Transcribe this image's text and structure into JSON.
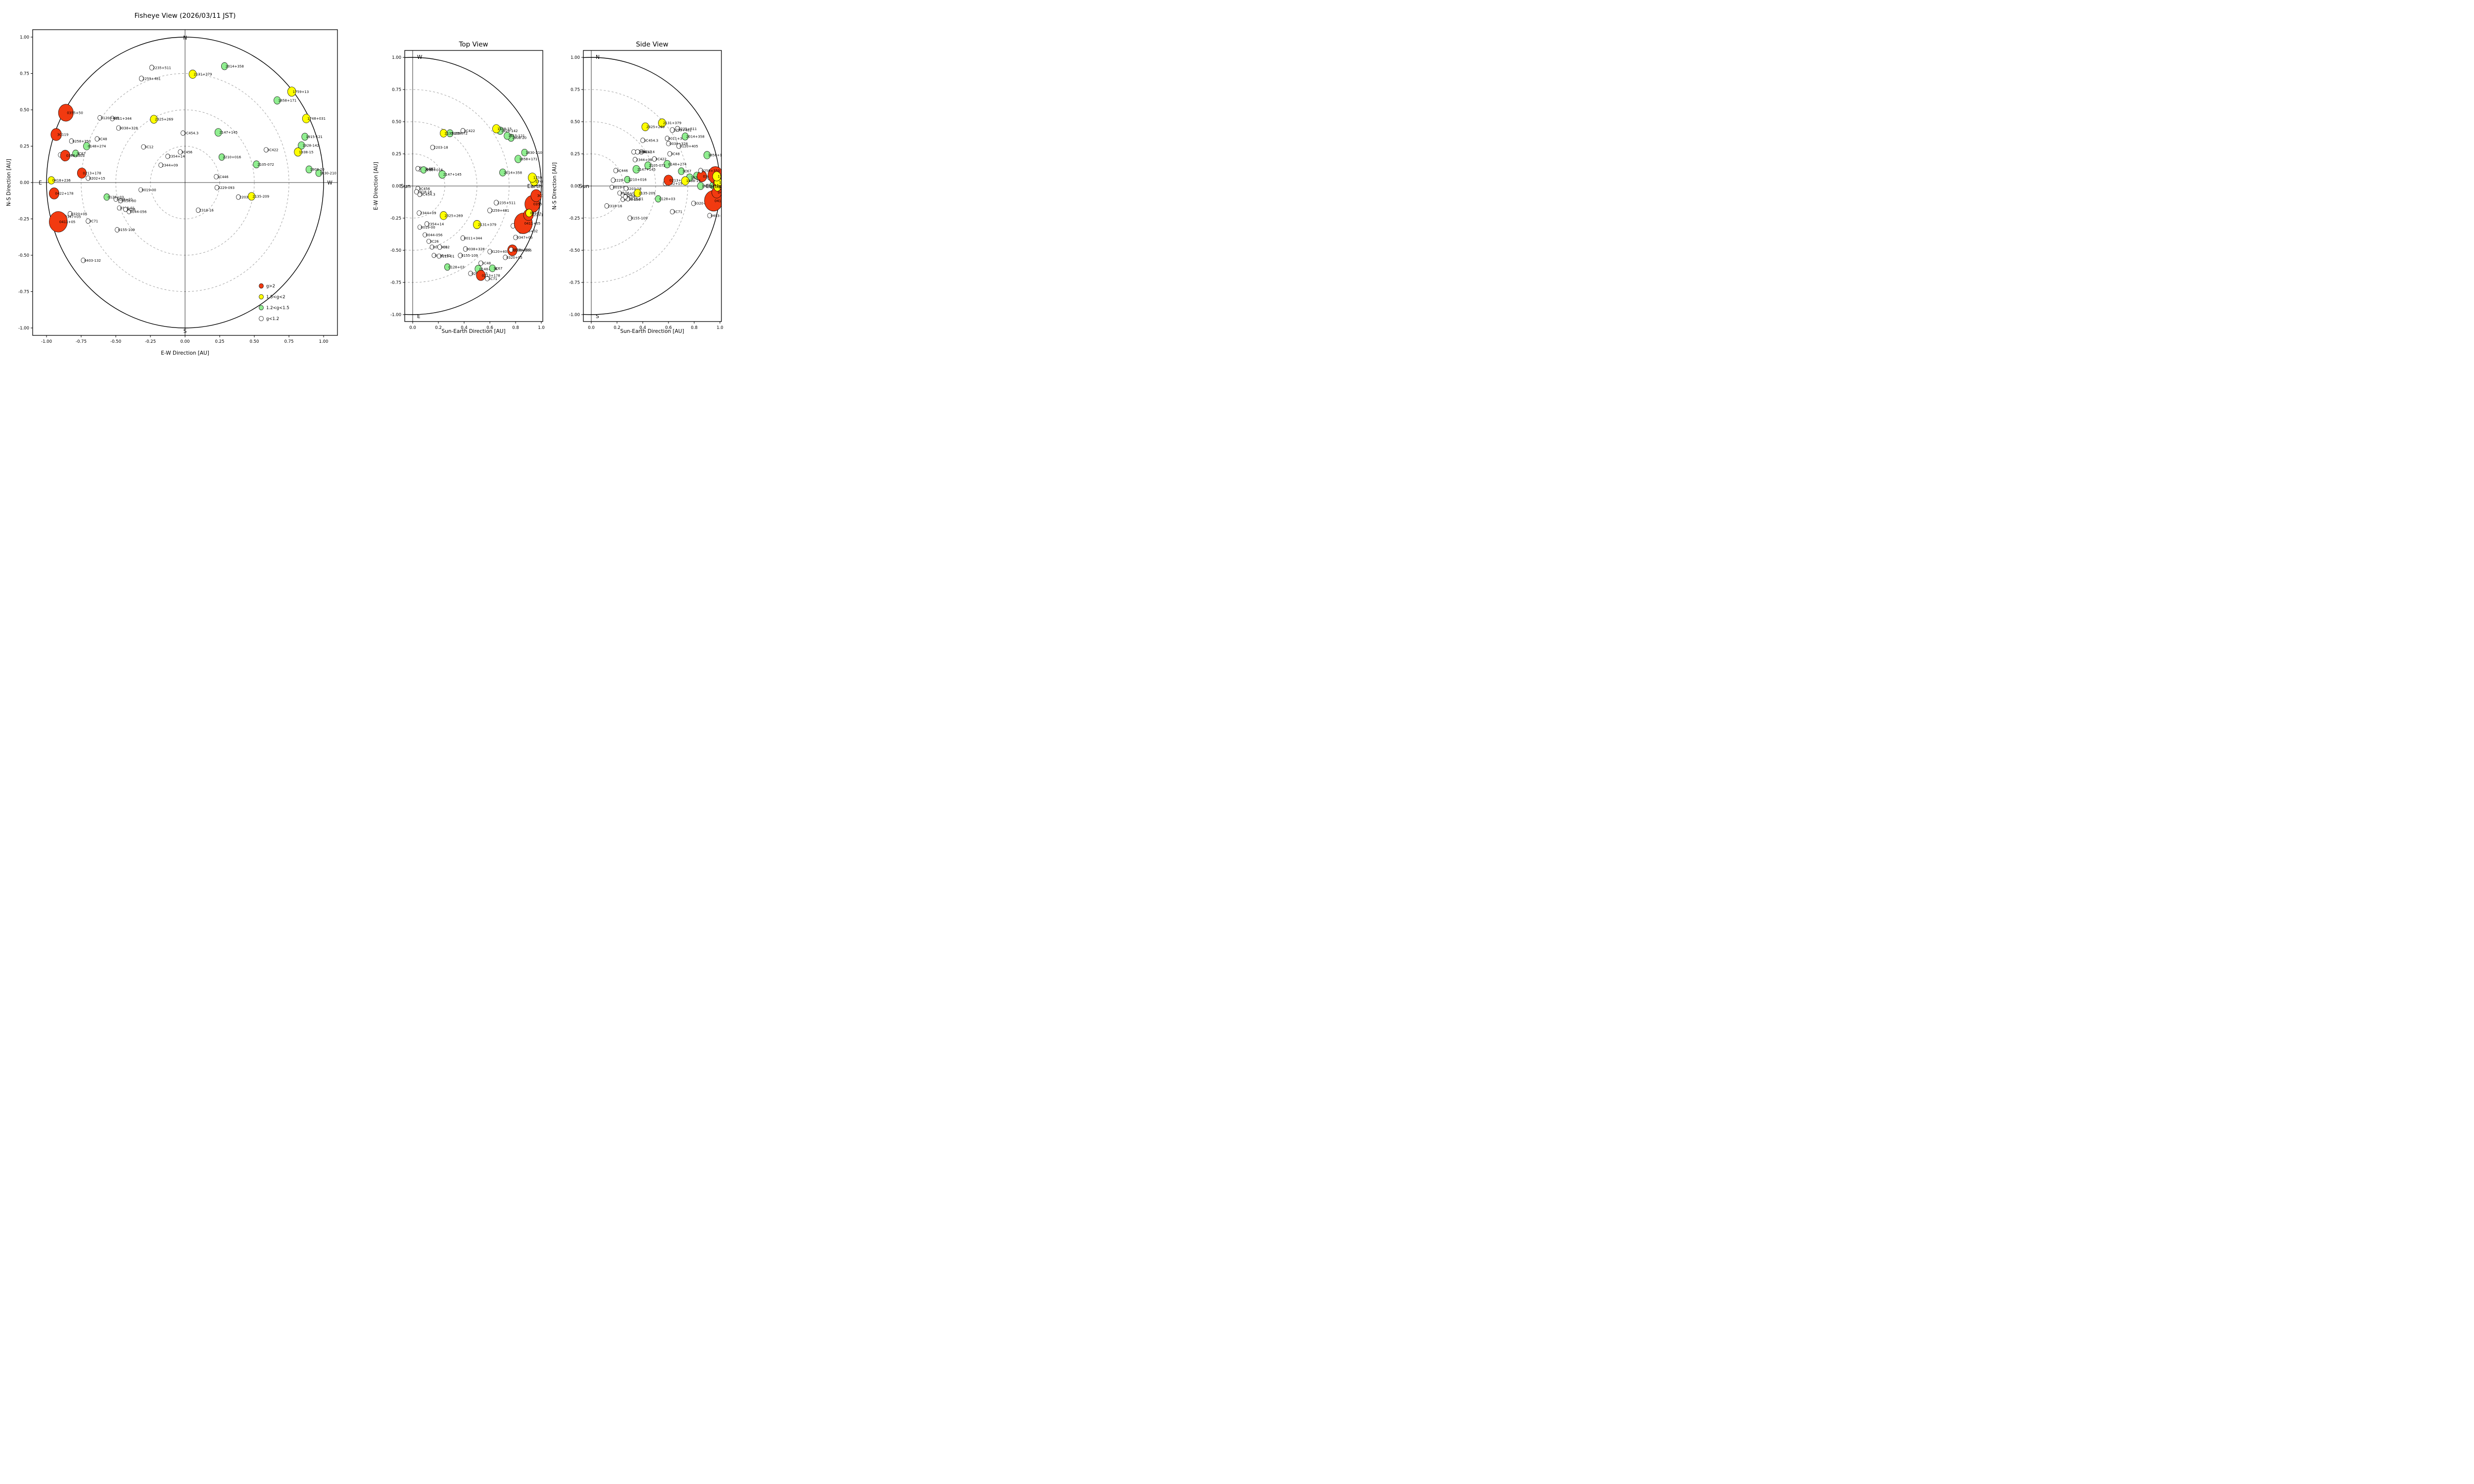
{
  "page": {
    "background": "#ffffff"
  },
  "style": {
    "grid_color": "#999999",
    "axis_color": "#000000",
    "marker_edge": "#000000"
  },
  "legend": {
    "items": [
      {
        "class": "red",
        "label": "g>2"
      },
      {
        "class": "yellow",
        "label": "1.5<g<2"
      },
      {
        "class": "green",
        "label": "1.2<g<1.5"
      },
      {
        "class": "white",
        "label": "g<1.2"
      }
    ]
  },
  "panels": {
    "fisheye": {
      "title": "Fisheye View (2026/03/11 JST)",
      "xlabel": "E-W Direction [AU]",
      "ylabel": "N-S Direction [AU]",
      "xticks": [
        "-1.00",
        "-0.75",
        "-0.50",
        "-0.25",
        "0.00",
        "0.25",
        "0.50",
        "0.75",
        "1.00"
      ],
      "yticks": [
        "-1.00",
        "-0.75",
        "-0.50",
        "-0.25",
        "0.00",
        "0.25",
        "0.50",
        "0.75",
        "1.00"
      ],
      "compass": {
        "top": "N",
        "bottom": "S",
        "left": "E",
        "right": "W"
      },
      "circles": {
        "solid": 1.0,
        "dashed": [
          0.25,
          0.5,
          0.75
        ]
      },
      "xlim": [
        -1.1,
        1.1
      ],
      "ylim": [
        -1.06,
        1.06
      ],
      "legend": true
    },
    "top": {
      "title": "Top View",
      "xlabel": "Sun-Earth Direction [AU]",
      "ylabel": "E-W Direction [AU]",
      "xticks": [
        "0.0",
        "0.2",
        "0.4",
        "0.6",
        "0.8",
        "1.0"
      ],
      "yticks": [
        "1.00",
        "0.75",
        "0.50",
        "0.25",
        "0.00",
        "-0.25",
        "-0.50",
        "-0.75",
        "-1.00"
      ],
      "compass": {
        "top": "W",
        "bottom": "E"
      },
      "sun_label": "Sun",
      "earth_label": "Earth",
      "circles": {
        "solid": 1.0,
        "dashed": [
          0.25,
          0.5,
          0.75
        ]
      },
      "xlim": [
        -0.06,
        1.07
      ],
      "ylim": [
        -1.05,
        1.05
      ]
    },
    "side": {
      "title": "Side View",
      "xlabel": "Sun-Earth Direction [AU]",
      "ylabel": "N-S Direction [AU]",
      "xticks": [
        "0.0",
        "0.2",
        "0.4",
        "0.6",
        "0.8",
        "1.0"
      ],
      "yticks": [
        "1.00",
        "0.75",
        "0.50",
        "0.25",
        "0.00",
        "-0.25",
        "-0.50",
        "-0.75",
        "-1.00"
      ],
      "compass": {
        "top": "N",
        "bottom": "S"
      },
      "sun_label": "Sun",
      "earth_label": "Earth",
      "circles": {
        "solid": 1.0,
        "dashed": [
          0.25,
          0.5,
          0.75
        ]
      },
      "xlim": [
        -0.06,
        1.07
      ],
      "ylim": [
        -1.05,
        1.05
      ]
    }
  },
  "chart_data": {
    "type": "scatter",
    "title": "Fisheye View (2026/03/11 JST) / Top View / Side View",
    "axes_units": "AU",
    "class_colors": {
      "red": "#f23a10",
      "yellow": "#ffff00",
      "green": "#90ee90",
      "white": "#ffffff"
    },
    "class_meaning": {
      "red": "g>2",
      "yellow": "1.5<g<2",
      "green": "1.2<g<1.5",
      "white": "g<1.2"
    },
    "sources": [
      {
        "name": "0011+344",
        "class": "white",
        "size": 0.016,
        "fisheye": [
          -0.525,
          0.44
        ],
        "top": [
          0.39,
          -0.405
        ],
        "side": [
          0.59,
          0.37
        ]
      },
      {
        "name": "0019-00",
        "class": "white",
        "size": 0.015,
        "fisheye": [
          -0.32,
          -0.05
        ],
        "top": [
          0.055,
          -0.32
        ],
        "side": [
          0.16,
          -0.01
        ]
      },
      {
        "name": "0038+328",
        "class": "white",
        "size": 0.016,
        "fisheye": [
          -0.48,
          0.375
        ],
        "top": [
          0.41,
          -0.49
        ],
        "side": [
          0.6,
          0.33
        ]
      },
      {
        "name": "0044-056",
        "class": "white",
        "size": 0.015,
        "fisheye": [
          -0.405,
          -0.2
        ],
        "top": [
          0.095,
          -0.38
        ],
        "side": [
          0.245,
          -0.105
        ]
      },
      {
        "name": "0056-00",
        "class": "white",
        "size": 0.015,
        "fisheye": [
          -0.465,
          -0.125
        ],
        "top": [
          0.15,
          -0.475
        ],
        "side": [
          0.245,
          -0.07
        ]
      },
      {
        "name": "0106+01",
        "class": "white",
        "size": 0.015,
        "fisheye": [
          -0.5,
          -0.115
        ],
        "top": [
          0.165,
          -0.54
        ],
        "side": [
          0.22,
          -0.055
        ]
      },
      {
        "name": "0115-01",
        "class": "white",
        "size": 0.015,
        "fisheye": [
          -0.475,
          -0.175
        ],
        "top": [
          0.205,
          -0.545
        ],
        "side": [
          0.285,
          -0.1
        ]
      },
      {
        "name": "0120+405",
        "class": "white",
        "size": 0.016,
        "fisheye": [
          -0.615,
          0.445
        ],
        "top": [
          0.6,
          -0.51
        ],
        "side": [
          0.68,
          0.31
        ]
      },
      {
        "name": "0155-109",
        "class": "white",
        "size": 0.016,
        "fisheye": [
          -0.49,
          -0.325
        ],
        "top": [
          0.37,
          -0.54
        ],
        "side": [
          0.3,
          -0.25
        ]
      },
      {
        "name": "0202+15",
        "class": "white",
        "size": 0.016,
        "fisheye": [
          -0.7,
          0.03
        ],
        "top": [
          0.45,
          -0.68
        ],
        "side": [
          0.575,
          0.02
        ]
      },
      {
        "name": "0320+05",
        "class": "white",
        "size": 0.016,
        "fisheye": [
          -0.83,
          -0.215
        ],
        "top": [
          0.72,
          -0.555
        ],
        "side": [
          0.795,
          -0.135
        ]
      },
      {
        "name": "0333+32",
        "class": "white",
        "size": 0.016,
        "fisheye": [
          -0.9,
          0.19
        ],
        "top": [
          0.84,
          -0.35
        ],
        "side": [
          0.92,
          0.065
        ]
      },
      {
        "name": "0347+05",
        "class": "white",
        "size": 0.016,
        "fisheye": [
          -0.875,
          -0.235
        ],
        "top": [
          0.8,
          -0.4
        ],
        "side": [
          0.9,
          -0.13
        ]
      },
      {
        "name": "0403-132",
        "class": "white",
        "size": 0.016,
        "fisheye": [
          -0.735,
          -0.535
        ],
        "top": [
          0.78,
          -0.31
        ],
        "side": [
          0.92,
          -0.23
        ]
      },
      {
        "name": "3C12",
        "class": "white",
        "size": 0.016,
        "fisheye": [
          -0.3,
          0.245
        ],
        "top": [
          0.21,
          -0.475
        ],
        "side": [
          0.39,
          0.265
        ]
      },
      {
        "name": "3C26",
        "class": "white",
        "size": 0.015,
        "fisheye": [
          -0.43,
          -0.185
        ],
        "top": [
          0.125,
          -0.43
        ],
        "side": [
          0.265,
          -0.085
        ]
      },
      {
        "name": "3C446",
        "class": "white",
        "size": 0.016,
        "fisheye": [
          0.225,
          0.04
        ],
        "top": [
          0.06,
          0.13
        ],
        "side": [
          0.19,
          0.12
        ]
      },
      {
        "name": "3C454.3",
        "class": "white",
        "size": 0.016,
        "fisheye": [
          -0.015,
          0.34
        ],
        "top": [
          0.055,
          -0.065
        ],
        "side": [
          0.4,
          0.355
        ]
      },
      {
        "name": "3C456",
        "class": "white",
        "size": 0.016,
        "fisheye": [
          -0.035,
          0.21
        ],
        "top": [
          0.04,
          -0.02
        ],
        "side": [
          0.33,
          0.265
        ]
      },
      {
        "name": "3C48",
        "class": "white",
        "size": 0.016,
        "fisheye": [
          -0.635,
          0.3
        ],
        "top": [
          0.53,
          -0.6
        ],
        "side": [
          0.61,
          0.25
        ]
      },
      {
        "name": "3C71",
        "class": "white",
        "size": 0.016,
        "fisheye": [
          -0.7,
          -0.265
        ],
        "top": [
          0.58,
          -0.72
        ],
        "side": [
          0.63,
          -0.2
        ]
      },
      {
        "name": "2203-18",
        "class": "white",
        "size": 0.016,
        "fisheye": [
          0.385,
          -0.1
        ],
        "top": [
          0.155,
          0.3
        ],
        "side": [
          0.27,
          -0.02
        ]
      },
      {
        "name": "2229-093",
        "class": "white",
        "size": 0.016,
        "fisheye": [
          0.23,
          -0.035
        ],
        "top": [
          0.04,
          0.135
        ],
        "side": [
          0.17,
          0.045
        ]
      },
      {
        "name": "2235+511",
        "class": "white",
        "size": 0.017,
        "fisheye": [
          -0.24,
          0.79
        ],
        "top": [
          0.65,
          -0.13
        ],
        "side": [
          0.67,
          0.445
        ]
      },
      {
        "name": "2259+481",
        "class": "white",
        "size": 0.017,
        "fisheye": [
          -0.315,
          0.715
        ],
        "top": [
          0.6,
          -0.19
        ],
        "side": [
          0.63,
          0.435
        ]
      },
      {
        "name": "2318-16",
        "class": "white",
        "size": 0.016,
        "fisheye": [
          0.095,
          -0.19
        ],
        "top": [
          0.03,
          -0.045
        ],
        "side": [
          0.12,
          -0.155
        ]
      },
      {
        "name": "2344+09",
        "class": "white",
        "size": 0.016,
        "fisheye": [
          -0.175,
          0.12
        ],
        "top": [
          0.05,
          -0.21
        ],
        "side": [
          0.34,
          0.205
        ]
      },
      {
        "name": "2354+14",
        "class": "white",
        "size": 0.016,
        "fisheye": [
          -0.125,
          0.18
        ],
        "top": [
          0.11,
          -0.295
        ],
        "side": [
          0.36,
          0.265
        ]
      },
      {
        "name": "3C422",
        "class": "white",
        "size": 0.016,
        "fisheye": [
          0.585,
          0.225
        ],
        "top": [
          0.39,
          0.43
        ],
        "side": [
          0.49,
          0.21
        ]
      },
      {
        "name": "0128+03",
        "class": "green",
        "size": 0.022,
        "fisheye": [
          -0.565,
          -0.1
        ],
        "top": [
          0.27,
          -0.63
        ],
        "side": [
          0.52,
          -0.1
        ]
      },
      {
        "name": "0148+274",
        "class": "green",
        "size": 0.025,
        "fisheye": [
          -0.71,
          0.25
        ],
        "top": [
          0.51,
          -0.645
        ],
        "side": [
          0.59,
          0.17
        ]
      },
      {
        "name": "3C67",
        "class": "green",
        "size": 0.023,
        "fisheye": [
          -0.79,
          0.2
        ],
        "top": [
          0.62,
          -0.64
        ],
        "side": [
          0.7,
          0.115
        ]
      },
      {
        "name": "1830-210",
        "class": "green",
        "size": 0.023,
        "fisheye": [
          0.965,
          0.065
        ],
        "top": [
          0.87,
          0.26
        ],
        "side": [
          0.945,
          0.005
        ]
      },
      {
        "name": "1858+171",
        "class": "green",
        "size": 0.025,
        "fisheye": [
          0.665,
          0.565
        ],
        "top": [
          0.82,
          0.21
        ],
        "side": [
          0.9,
          0.24
        ]
      },
      {
        "name": "1908-20",
        "class": "green",
        "size": 0.024,
        "fisheye": [
          0.895,
          0.09
        ],
        "top": [
          0.765,
          0.375
        ],
        "side": [
          0.85,
          0.0
        ]
      },
      {
        "name": "1915-121",
        "class": "green",
        "size": 0.024,
        "fisheye": [
          0.865,
          0.315
        ],
        "top": [
          0.735,
          0.39
        ],
        "side": [
          0.82,
          0.08
        ]
      },
      {
        "name": "1928-142",
        "class": "green",
        "size": 0.025,
        "fisheye": [
          0.84,
          0.255
        ],
        "top": [
          0.68,
          0.43
        ],
        "side": [
          0.765,
          0.065
        ]
      },
      {
        "name": "2014+358",
        "class": "green",
        "size": 0.024,
        "fisheye": [
          0.285,
          0.8
        ],
        "top": [
          0.7,
          0.105
        ],
        "side": [
          0.73,
          0.385
        ]
      },
      {
        "name": "2105-072",
        "class": "green",
        "size": 0.024,
        "fisheye": [
          0.515,
          0.125
        ],
        "top": [
          0.29,
          0.41
        ],
        "side": [
          0.44,
          0.16
        ]
      },
      {
        "name": "2147+145",
        "class": "green",
        "size": 0.026,
        "fisheye": [
          0.24,
          0.345
        ],
        "top": [
          0.23,
          0.09
        ],
        "side": [
          0.35,
          0.13
        ]
      },
      {
        "name": "2210+016",
        "class": "green",
        "size": 0.022,
        "fisheye": [
          0.265,
          0.175
        ],
        "top": [
          0.085,
          0.125
        ],
        "side": [
          0.28,
          0.05
        ]
      },
      {
        "name": "0213+178",
        "class": "red",
        "size": 0.034,
        "fisheye": [
          -0.745,
          0.065
        ],
        "top": [
          0.53,
          -0.695
        ],
        "side": [
          0.6,
          0.045
        ]
      },
      {
        "name": "0308+305",
        "class": "red",
        "size": 0.036,
        "fisheye": [
          -0.865,
          0.185
        ],
        "top": [
          0.775,
          -0.5
        ],
        "side": [
          0.86,
          0.075
        ]
      },
      {
        "name": "0355+50",
        "class": "red",
        "size": 0.056,
        "fisheye": [
          -0.86,
          0.48
        ],
        "top": [
          0.93,
          -0.14
        ],
        "side": [
          0.965,
          0.085
        ]
      },
      {
        "name": "0411+05",
        "class": "red",
        "size": 0.068,
        "fisheye": [
          -0.915,
          -0.27
        ],
        "top": [
          0.86,
          -0.29
        ],
        "side": [
          0.95,
          -0.115
        ]
      },
      {
        "name": "0422+178",
        "class": "red",
        "size": 0.037,
        "fisheye": [
          -0.945,
          -0.075
        ],
        "top": [
          0.9,
          -0.225
        ],
        "side": [
          0.975,
          -0.05
        ]
      },
      {
        "name": "3C119",
        "class": "red",
        "size": 0.04,
        "fisheye": [
          -0.93,
          0.33
        ],
        "top": [
          0.96,
          -0.075
        ],
        "side": [
          0.99,
          0.015
        ]
      },
      {
        "name": "0258+350",
        "class": "white",
        "size": 0.016,
        "fisheye": [
          -0.82,
          0.285
        ],
        "top": [
          0.765,
          -0.495
        ],
        "side": [
          0.85,
          0.12
        ]
      },
      {
        "name": "0418+236",
        "class": "yellow",
        "size": 0.025,
        "fisheye": [
          -0.965,
          0.015
        ],
        "top": [
          0.905,
          -0.21
        ],
        "side": [
          0.98,
          -0.01
        ]
      },
      {
        "name": "1748+031",
        "class": "yellow",
        "size": 0.029,
        "fisheye": [
          0.875,
          0.44
        ],
        "top": [
          0.945,
          0.035
        ],
        "side": [
          0.985,
          0.03
        ]
      },
      {
        "name": "1759+13",
        "class": "yellow",
        "size": 0.031,
        "fisheye": [
          0.77,
          0.625
        ],
        "top": [
          0.93,
          0.065
        ],
        "side": [
          0.975,
          0.075
        ]
      },
      {
        "name": "1938-15",
        "class": "yellow",
        "size": 0.028,
        "fisheye": [
          0.815,
          0.21
        ],
        "top": [
          0.65,
          0.445
        ],
        "side": [
          0.73,
          0.04
        ]
      },
      {
        "name": "2131+379",
        "class": "yellow",
        "size": 0.028,
        "fisheye": [
          0.055,
          0.745
        ],
        "top": [
          0.5,
          -0.3
        ],
        "side": [
          0.55,
          0.49
        ]
      },
      {
        "name": "2135-209",
        "class": "yellow",
        "size": 0.026,
        "fisheye": [
          0.48,
          -0.095
        ],
        "top": [
          0.24,
          0.41
        ],
        "side": [
          0.36,
          -0.055
        ]
      },
      {
        "name": "2325+269",
        "class": "yellow",
        "size": 0.027,
        "fisheye": [
          -0.225,
          0.435
        ],
        "top": [
          0.24,
          -0.23
        ],
        "side": [
          0.42,
          0.46
        ]
      }
    ]
  }
}
